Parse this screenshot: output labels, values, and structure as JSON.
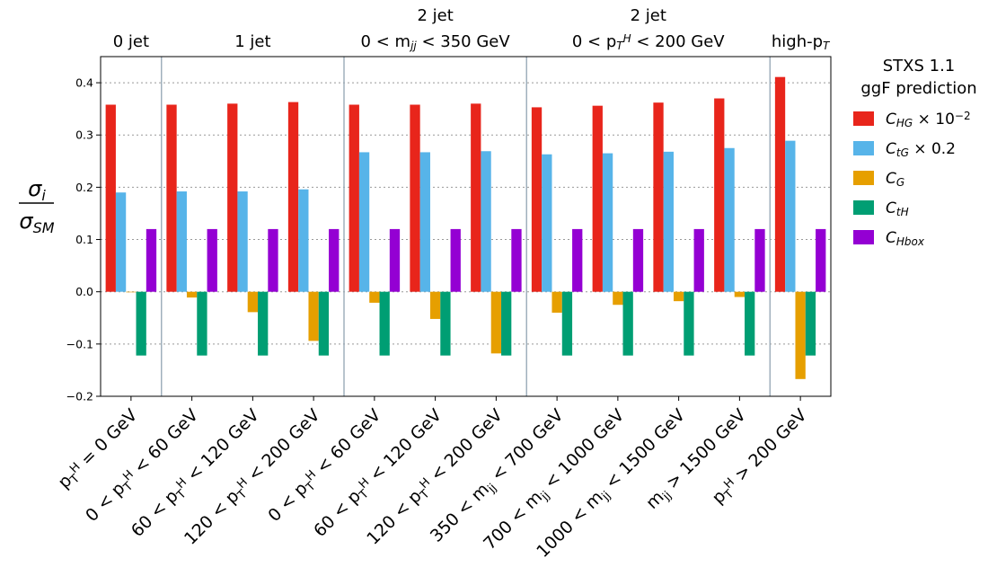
{
  "chart_data": {
    "type": "bar",
    "categories": [
      "p_T^H = 0 GeV",
      "0 < p_T^H < 60 GeV",
      "60 < p_T^H < 120 GeV",
      "120 < p_T^H < 200 GeV",
      "0 < p_T^H < 60 GeV",
      "60 < p_T^H < 120 GeV",
      "120 < p_T^H < 200 GeV",
      "350 < m_jj < 700 GeV",
      "700 < m_jj < 1000 GeV",
      "1000 < m_jj < 1500 GeV",
      "m_jj > 1500 GeV",
      "p_T^H > 200 GeV"
    ],
    "category_labels": [
      {
        "parts": [
          [
            "p",
            ""
          ],
          [
            "T",
            "sub"
          ],
          [
            "H",
            "sup"
          ],
          [
            " = 0 GeV",
            ""
          ]
        ]
      },
      {
        "parts": [
          [
            "0 < p",
            ""
          ],
          [
            "T",
            "sub"
          ],
          [
            "H",
            "sup"
          ],
          [
            " < 60 GeV",
            ""
          ]
        ]
      },
      {
        "parts": [
          [
            "60 < p",
            ""
          ],
          [
            "T",
            "sub"
          ],
          [
            "H",
            "sup"
          ],
          [
            " < 120 GeV",
            ""
          ]
        ]
      },
      {
        "parts": [
          [
            "120 < p",
            ""
          ],
          [
            "T",
            "sub"
          ],
          [
            "H",
            "sup"
          ],
          [
            " < 200 GeV",
            ""
          ]
        ]
      },
      {
        "parts": [
          [
            "0 < p",
            ""
          ],
          [
            "T",
            "sub"
          ],
          [
            "H",
            "sup"
          ],
          [
            " < 60 GeV",
            ""
          ]
        ]
      },
      {
        "parts": [
          [
            "60 < p",
            ""
          ],
          [
            "T",
            "sub"
          ],
          [
            "H",
            "sup"
          ],
          [
            " < 120 GeV",
            ""
          ]
        ]
      },
      {
        "parts": [
          [
            "120 < p",
            ""
          ],
          [
            "T",
            "sub"
          ],
          [
            "H",
            "sup"
          ],
          [
            " < 200 GeV",
            ""
          ]
        ]
      },
      {
        "parts": [
          [
            "350 < m",
            ""
          ],
          [
            "jj",
            "sub"
          ],
          [
            " < 700 GeV",
            ""
          ]
        ]
      },
      {
        "parts": [
          [
            "700 < m",
            ""
          ],
          [
            "jj",
            "sub"
          ],
          [
            " < 1000 GeV",
            ""
          ]
        ]
      },
      {
        "parts": [
          [
            "1000 < m",
            ""
          ],
          [
            "jj",
            "sub"
          ],
          [
            " < 1500 GeV",
            ""
          ]
        ]
      },
      {
        "parts": [
          [
            "m",
            ""
          ],
          [
            "jj",
            "sub"
          ],
          [
            " > 1500 GeV",
            ""
          ]
        ]
      },
      {
        "parts": [
          [
            "p",
            ""
          ],
          [
            "T",
            "sub"
          ],
          [
            "H",
            "sup"
          ],
          [
            " > 200 GeV",
            ""
          ]
        ]
      }
    ],
    "series": [
      {
        "name": "C_HG × 10^-2",
        "color": "#e8251b",
        "values": [
          0.358,
          0.358,
          0.36,
          0.363,
          0.358,
          0.358,
          0.36,
          0.353,
          0.356,
          0.362,
          0.37,
          0.411
        ]
      },
      {
        "name": "C_tG × 0.2",
        "color": "#57b4e9",
        "values": [
          0.19,
          0.192,
          0.192,
          0.196,
          0.267,
          0.267,
          0.269,
          0.263,
          0.265,
          0.268,
          0.275,
          0.289
        ]
      },
      {
        "name": "C_G",
        "color": "#e69f00",
        "values": [
          -0.001,
          -0.011,
          -0.039,
          -0.094,
          -0.021,
          -0.052,
          -0.118,
          -0.04,
          -0.025,
          -0.018,
          -0.01,
          -0.167
        ]
      },
      {
        "name": "C_tH",
        "color": "#009e73",
        "values": [
          -0.122,
          -0.122,
          -0.122,
          -0.122,
          -0.122,
          -0.122,
          -0.122,
          -0.122,
          -0.122,
          -0.122,
          -0.122,
          -0.122
        ]
      },
      {
        "name": "C_Hbox",
        "color": "#9400d3",
        "values": [
          0.12,
          0.12,
          0.12,
          0.12,
          0.12,
          0.12,
          0.12,
          0.12,
          0.12,
          0.12,
          0.12,
          0.12
        ]
      }
    ],
    "legend": {
      "title_line1": "STXS 1.1",
      "title_line2": "ggF prediction",
      "placement": "right",
      "entries": [
        {
          "parts": [
            [
              "C",
              "i"
            ],
            [
              "HG",
              "isub"
            ],
            [
              " × 10",
              ""
            ],
            [
              "−2",
              "sup"
            ]
          ]
        },
        {
          "parts": [
            [
              "C",
              "i"
            ],
            [
              "tG",
              "isub"
            ],
            [
              " × 0.2",
              ""
            ]
          ]
        },
        {
          "parts": [
            [
              "C",
              "i"
            ],
            [
              "G",
              "isub"
            ]
          ]
        },
        {
          "parts": [
            [
              "C",
              "i"
            ],
            [
              "tH",
              "isub"
            ]
          ]
        },
        {
          "parts": [
            [
              "C",
              "i"
            ],
            [
              "Hbox",
              "isub"
            ]
          ]
        }
      ]
    },
    "groups": [
      {
        "label_lines": [
          [
            [
              "0 jet",
              ""
            ]
          ]
        ],
        "from": 0,
        "to": 0
      },
      {
        "label_lines": [
          [
            [
              "1 jet",
              ""
            ]
          ]
        ],
        "from": 1,
        "to": 3
      },
      {
        "label_lines": [
          [
            [
              "2 jet",
              ""
            ]
          ],
          [
            [
              "0 < m",
              ""
            ],
            [
              "jj",
              "isub"
            ],
            [
              " < 350 GeV",
              ""
            ]
          ]
        ],
        "from": 4,
        "to": 6
      },
      {
        "label_lines": [
          [
            [
              "2 jet",
              ""
            ]
          ],
          [
            [
              "0 < p",
              ""
            ],
            [
              "T",
              "isub"
            ],
            [
              "H",
              "isup"
            ],
            [
              " < 200 GeV",
              ""
            ]
          ]
        ],
        "from": 7,
        "to": 10
      },
      {
        "label_lines": [
          [
            [
              "high-p",
              ""
            ],
            [
              "T",
              "isub"
            ]
          ]
        ],
        "from": 11,
        "to": 11
      }
    ],
    "ylabel_numerator": "σ",
    "ylabel_numerator_sub": "i",
    "ylabel_denominator": "σ",
    "ylabel_denominator_sub": "SM",
    "ylim": [
      -0.2,
      0.45
    ],
    "yticks": [
      -0.2,
      -0.1,
      0.0,
      0.1,
      0.2,
      0.3,
      0.4
    ],
    "ytick_labels": [
      "−0.2",
      "−0.1",
      "0.0",
      "0.1",
      "0.2",
      "0.3",
      "0.4"
    ],
    "grid": "horizontal-dotted"
  }
}
